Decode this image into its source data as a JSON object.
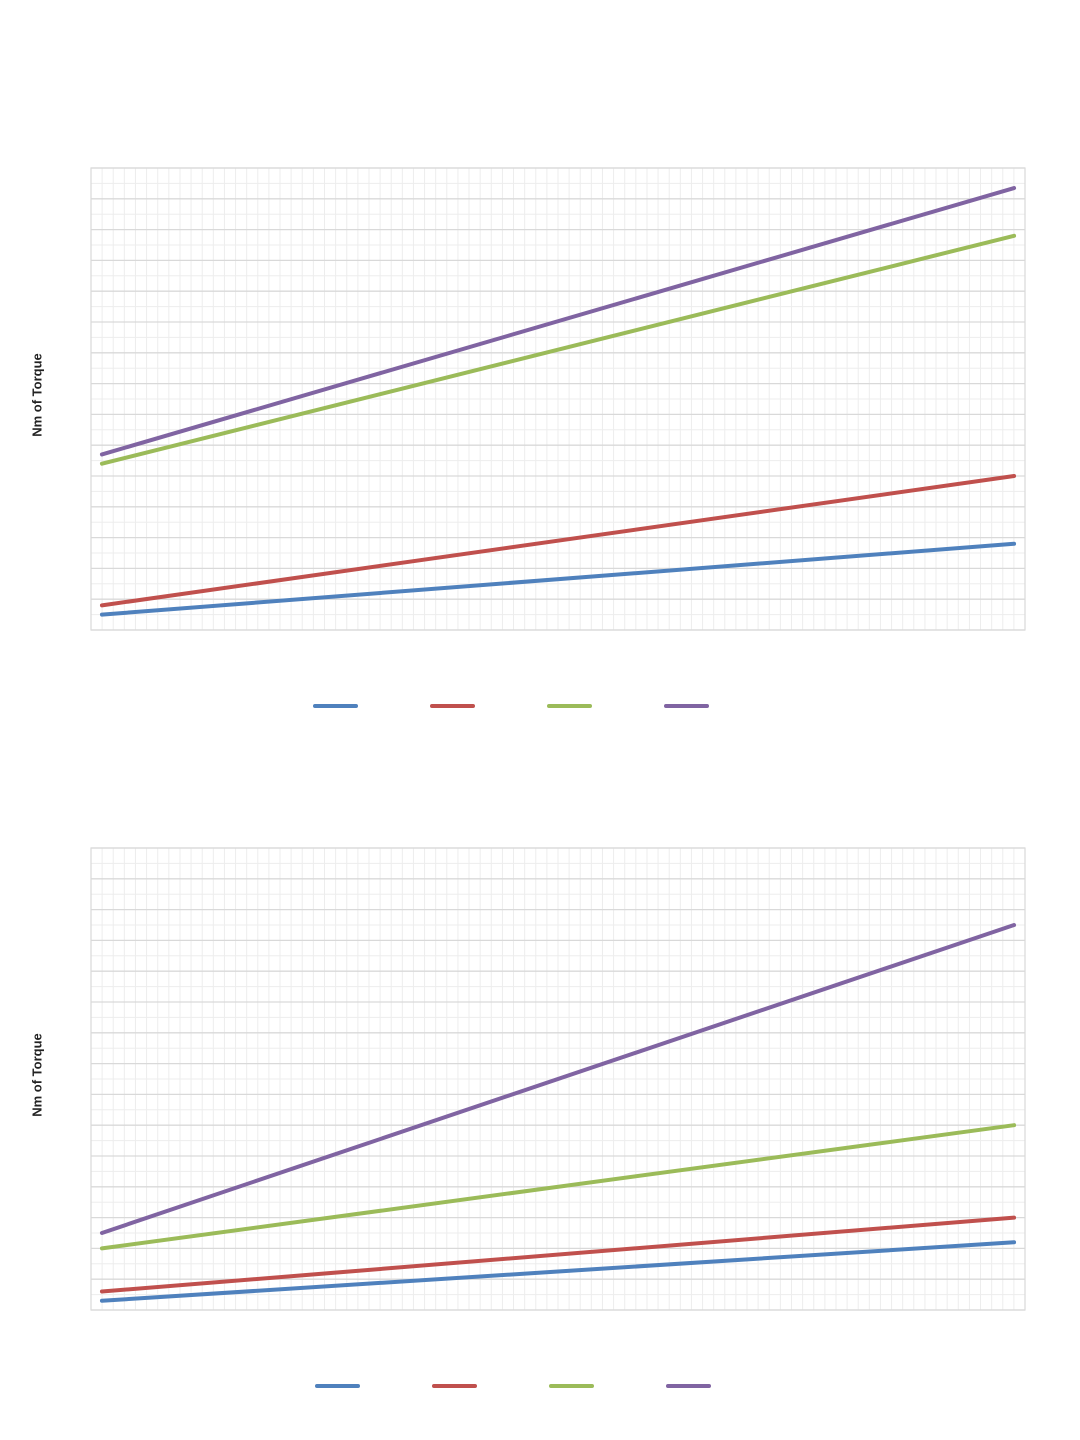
{
  "colors": {
    "series1": "#4F81BD",
    "series2": "#C0504D",
    "series3": "#9BBB59",
    "series4": "#8064A2",
    "grid_major": "#D9D9D9",
    "grid_minor": "#EDEDED",
    "frame": "#D9D9D9"
  },
  "chart_data": [
    {
      "type": "line",
      "ylabel": "Nm of Torque",
      "xlabel": "",
      "title": "",
      "x": [
        0,
        1
      ],
      "ylim": [
        0,
        30
      ],
      "xlim": [
        -0.012,
        1.012
      ],
      "grid": true,
      "legend_position": "bottom",
      "series": [
        {
          "values": [
            1.0,
            5.6
          ]
        },
        {
          "values": [
            1.6,
            10.0
          ]
        },
        {
          "values": [
            10.8,
            25.6
          ]
        },
        {
          "values": [
            11.4,
            28.7
          ]
        }
      ]
    },
    {
      "type": "line",
      "ylabel": "Nm of Torque",
      "xlabel": "",
      "title": "",
      "x": [
        0,
        1
      ],
      "ylim": [
        0,
        30
      ],
      "xlim": [
        -0.012,
        1.012
      ],
      "grid": true,
      "legend_position": "bottom",
      "series": [
        {
          "values": [
            0.6,
            4.4
          ]
        },
        {
          "values": [
            1.2,
            6.0
          ]
        },
        {
          "values": [
            4.0,
            12.0
          ]
        },
        {
          "values": [
            5.0,
            25.0
          ]
        }
      ]
    }
  ]
}
